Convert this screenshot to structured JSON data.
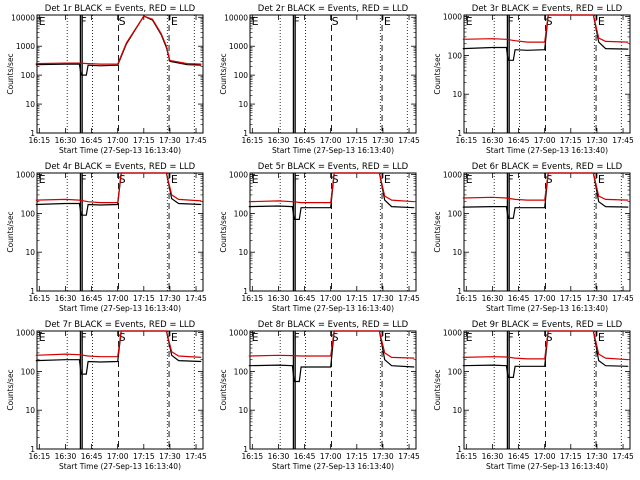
{
  "chart_data": [
    {
      "type": "line",
      "title": "Det 1r BLACK = Events, RED = LLD",
      "xlabel": "Start Time (27-Sep-13 16:13:40)",
      "ylabel": "Counts/sec",
      "x_ticks": [
        "16:15",
        "16:30",
        "16:45",
        "17:00",
        "17:15",
        "17:30",
        "17:45"
      ],
      "y_ticks": [
        "1",
        "10",
        "100",
        "1000",
        "10000"
      ],
      "y_scale": "log",
      "ylim": [
        1,
        12000
      ],
      "markers": [
        "E",
        "F",
        "S",
        "E"
      ],
      "series": [
        {
          "color": "#000000",
          "x": [
            "16:13",
            "16:30",
            "16:38",
            "16:39",
            "16:42",
            "16:43",
            "16:50",
            "17:00",
            "17:05",
            "17:15",
            "17:20",
            "17:25",
            "17:28",
            "17:30",
            "17:40",
            "17:48"
          ],
          "y": [
            230,
            240,
            240,
            100,
            100,
            220,
            210,
            220,
            1200,
            11000,
            8000,
            2500,
            900,
            300,
            230,
            220
          ]
        },
        {
          "color": "#d40000",
          "x": [
            "16:13",
            "16:30",
            "16:38",
            "16:43",
            "16:50",
            "17:00",
            "17:05",
            "17:15",
            "17:20",
            "17:25",
            "17:28",
            "17:30",
            "17:40",
            "17:48"
          ],
          "y": [
            250,
            260,
            260,
            250,
            240,
            240,
            1300,
            11000,
            8500,
            2700,
            1000,
            320,
            250,
            240
          ]
        }
      ]
    },
    {
      "type": "line",
      "title": "Det 2r BLACK = Events, RED = LLD",
      "xlabel": "Start Time (27-Sep-13 16:13:40)",
      "ylabel": "Counts/sec",
      "x_ticks": [
        "16:15",
        "16:30",
        "16:45",
        "17:00",
        "17:15",
        "17:30",
        "17:45"
      ],
      "y_ticks": [
        "1",
        "10",
        "100",
        "1000",
        "10000"
      ],
      "y_scale": "log",
      "ylim": [
        1,
        12000
      ],
      "markers": [
        "E",
        "F",
        "S",
        "E"
      ],
      "series": []
    },
    {
      "type": "line",
      "title": "Det 3r BLACK = Events, RED = LLD",
      "xlabel": "Start Time (27-Sep-13 16:13:40)",
      "ylabel": "Counts/sec",
      "x_ticks": [
        "16:15",
        "16:30",
        "16:45",
        "17:00",
        "17:15",
        "17:30",
        "17:45"
      ],
      "y_ticks": [
        "1",
        "10",
        "100",
        "1000"
      ],
      "y_scale": "log",
      "ylim": [
        1,
        1100
      ],
      "markers": [
        "E",
        "F",
        "S",
        "E"
      ],
      "series": [
        {
          "color": "#000000",
          "x": [
            "16:13",
            "16:30",
            "16:38",
            "16:39",
            "16:42",
            "16:43",
            "16:50",
            "17:00",
            "17:02",
            "17:28",
            "17:31",
            "17:35",
            "17:48"
          ],
          "y": [
            150,
            160,
            160,
            75,
            75,
            140,
            135,
            140,
            1100,
            1100,
            220,
            150,
            145
          ]
        },
        {
          "color": "#d40000",
          "x": [
            "16:13",
            "16:30",
            "16:38",
            "16:43",
            "16:50",
            "17:00",
            "17:02",
            "17:28",
            "17:31",
            "17:35",
            "17:48"
          ],
          "y": [
            260,
            270,
            260,
            240,
            220,
            220,
            1100,
            1100,
            280,
            230,
            220
          ]
        }
      ]
    },
    {
      "type": "line",
      "title": "Det 4r BLACK = Events, RED = LLD",
      "xlabel": "Start Time (27-Sep-13 16:13:40)",
      "ylabel": "Counts/sec",
      "x_ticks": [
        "16:15",
        "16:30",
        "16:45",
        "17:00",
        "17:15",
        "17:30",
        "17:45"
      ],
      "y_ticks": [
        "1",
        "10",
        "100",
        "1000"
      ],
      "y_scale": "log",
      "ylim": [
        1,
        1100
      ],
      "markers": [
        "E",
        "F",
        "S",
        "E"
      ],
      "series": [
        {
          "color": "#000000",
          "x": [
            "16:13",
            "16:30",
            "16:38",
            "16:39",
            "16:42",
            "16:43",
            "16:50",
            "17:00",
            "17:02",
            "17:28",
            "17:31",
            "17:35",
            "17:48"
          ],
          "y": [
            170,
            180,
            180,
            90,
            90,
            170,
            165,
            170,
            1100,
            1100,
            240,
            180,
            170
          ]
        },
        {
          "color": "#d40000",
          "x": [
            "16:13",
            "16:30",
            "16:38",
            "16:43",
            "16:50",
            "17:00",
            "17:02",
            "17:28",
            "17:31",
            "17:35",
            "17:48"
          ],
          "y": [
            220,
            230,
            220,
            200,
            190,
            190,
            1100,
            1100,
            300,
            230,
            210
          ]
        }
      ]
    },
    {
      "type": "line",
      "title": "Det 5r BLACK = Events, RED = LLD",
      "xlabel": "Start Time (27-Sep-13 16:13:40)",
      "ylabel": "Counts/sec",
      "x_ticks": [
        "16:15",
        "16:30",
        "16:45",
        "17:00",
        "17:15",
        "17:30",
        "17:45"
      ],
      "y_ticks": [
        "1",
        "10",
        "100",
        "1000"
      ],
      "y_scale": "log",
      "ylim": [
        1,
        1100
      ],
      "markers": [
        "E",
        "F",
        "S",
        "E"
      ],
      "series": [
        {
          "color": "#000000",
          "x": [
            "16:13",
            "16:30",
            "16:38",
            "16:39",
            "16:42",
            "16:43",
            "16:50",
            "17:00",
            "17:02",
            "17:28",
            "17:31",
            "17:35",
            "17:48"
          ],
          "y": [
            150,
            155,
            150,
            70,
            70,
            140,
            140,
            140,
            1100,
            1100,
            220,
            150,
            140
          ]
        },
        {
          "color": "#d40000",
          "x": [
            "16:13",
            "16:30",
            "16:38",
            "16:43",
            "16:50",
            "17:00",
            "17:02",
            "17:28",
            "17:31",
            "17:35",
            "17:48"
          ],
          "y": [
            200,
            210,
            200,
            190,
            190,
            190,
            1100,
            1100,
            280,
            220,
            200
          ]
        }
      ]
    },
    {
      "type": "line",
      "title": "Det 6r BLACK = Events, RED = LLD",
      "xlabel": "Start Time (27-Sep-13 16:13:40)",
      "ylabel": "Counts/sec",
      "x_ticks": [
        "16:15",
        "16:30",
        "16:45",
        "17:00",
        "17:15",
        "17:30",
        "17:45"
      ],
      "y_ticks": [
        "1",
        "10",
        "100",
        "1000"
      ],
      "y_scale": "log",
      "ylim": [
        1,
        1100
      ],
      "markers": [
        "E",
        "F",
        "S",
        "E"
      ],
      "series": [
        {
          "color": "#000000",
          "x": [
            "16:13",
            "16:30",
            "16:38",
            "16:39",
            "16:42",
            "16:43",
            "16:50",
            "17:00",
            "17:02",
            "17:28",
            "17:31",
            "17:35",
            "17:48"
          ],
          "y": [
            145,
            150,
            150,
            75,
            75,
            140,
            140,
            140,
            1100,
            1100,
            200,
            150,
            145
          ]
        },
        {
          "color": "#d40000",
          "x": [
            "16:13",
            "16:30",
            "16:38",
            "16:43",
            "16:50",
            "17:00",
            "17:02",
            "17:28",
            "17:31",
            "17:35",
            "17:48"
          ],
          "y": [
            250,
            260,
            250,
            230,
            220,
            220,
            1100,
            1100,
            280,
            230,
            220
          ]
        }
      ]
    },
    {
      "type": "line",
      "title": "Det 7r BLACK = Events, RED = LLD",
      "xlabel": "Start Time (27-Sep-13 16:13:40)",
      "ylabel": "Counts/sec",
      "x_ticks": [
        "16:15",
        "16:30",
        "16:45",
        "17:00",
        "17:15",
        "17:30",
        "17:45"
      ],
      "y_ticks": [
        "1",
        "10",
        "100",
        "1000"
      ],
      "y_scale": "log",
      "ylim": [
        1,
        1100
      ],
      "markers": [
        "E",
        "F",
        "S",
        "E"
      ],
      "series": [
        {
          "color": "#000000",
          "x": [
            "16:13",
            "16:30",
            "16:38",
            "16:39",
            "16:42",
            "16:43",
            "16:50",
            "17:00",
            "17:02",
            "17:28",
            "17:31",
            "17:35",
            "17:48"
          ],
          "y": [
            190,
            200,
            200,
            85,
            85,
            180,
            175,
            180,
            1100,
            1100,
            260,
            190,
            180
          ]
        },
        {
          "color": "#d40000",
          "x": [
            "16:13",
            "16:30",
            "16:38",
            "16:43",
            "16:50",
            "17:00",
            "17:02",
            "17:28",
            "17:31",
            "17:35",
            "17:48"
          ],
          "y": [
            260,
            280,
            270,
            250,
            240,
            240,
            1100,
            1100,
            320,
            250,
            230
          ]
        }
      ]
    },
    {
      "type": "line",
      "title": "Det 8r BLACK = Events, RED = LLD",
      "xlabel": "Start Time (27-Sep-13 16:13:40)",
      "ylabel": "Counts/sec",
      "x_ticks": [
        "16:15",
        "16:30",
        "16:45",
        "17:00",
        "17:15",
        "17:30",
        "17:45"
      ],
      "y_ticks": [
        "1",
        "10",
        "100",
        "1000"
      ],
      "y_scale": "log",
      "ylim": [
        1,
        1100
      ],
      "markers": [
        "E",
        "F",
        "S",
        "E"
      ],
      "series": [
        {
          "color": "#000000",
          "x": [
            "16:13",
            "16:30",
            "16:38",
            "16:39",
            "16:42",
            "16:43",
            "16:50",
            "17:00",
            "17:02",
            "17:28",
            "17:31",
            "17:35",
            "17:48"
          ],
          "y": [
            140,
            145,
            140,
            55,
            55,
            130,
            130,
            130,
            1100,
            1100,
            200,
            140,
            130
          ]
        },
        {
          "color": "#d40000",
          "x": [
            "16:13",
            "16:30",
            "16:38",
            "16:43",
            "16:50",
            "17:00",
            "17:02",
            "17:28",
            "17:31",
            "17:35",
            "17:48"
          ],
          "y": [
            250,
            260,
            255,
            250,
            250,
            250,
            1100,
            1100,
            300,
            230,
            220
          ]
        }
      ]
    },
    {
      "type": "line",
      "title": "Det 9r BLACK = Events, RED = LLD",
      "xlabel": "Start Time (27-Sep-13 16:13:40)",
      "ylabel": "Counts/sec",
      "x_ticks": [
        "16:15",
        "16:30",
        "16:45",
        "17:00",
        "17:15",
        "17:30",
        "17:45"
      ],
      "y_ticks": [
        "1",
        "10",
        "100",
        "1000"
      ],
      "y_scale": "log",
      "ylim": [
        1,
        1100
      ],
      "markers": [
        "E",
        "F",
        "S",
        "E"
      ],
      "series": [
        {
          "color": "#000000",
          "x": [
            "16:13",
            "16:30",
            "16:38",
            "16:39",
            "16:42",
            "16:43",
            "16:50",
            "17:00",
            "17:02",
            "17:28",
            "17:31",
            "17:35",
            "17:48"
          ],
          "y": [
            140,
            145,
            140,
            70,
            70,
            135,
            135,
            135,
            1100,
            1100,
            190,
            140,
            135
          ]
        },
        {
          "color": "#d40000",
          "x": [
            "16:13",
            "16:30",
            "16:38",
            "16:43",
            "16:50",
            "17:00",
            "17:02",
            "17:28",
            "17:31",
            "17:35",
            "17:48"
          ],
          "y": [
            230,
            240,
            235,
            220,
            210,
            210,
            1100,
            1100,
            280,
            220,
            200
          ]
        }
      ]
    }
  ]
}
